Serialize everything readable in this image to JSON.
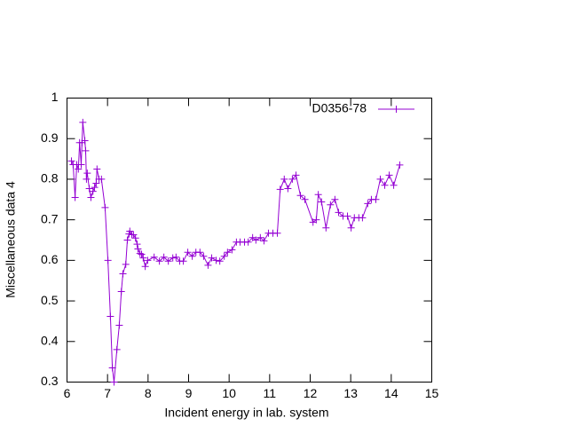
{
  "chart_data": {
    "type": "line",
    "xlabel": "Incident energy in lab. system",
    "ylabel": "Miscellaneous data 4",
    "xlim": [
      6,
      15
    ],
    "xticks": [
      6,
      7,
      8,
      9,
      10,
      11,
      12,
      13,
      14,
      15
    ],
    "ylim": [
      0.3,
      1
    ],
    "yticks": [
      0.3,
      0.4,
      0.5,
      0.6,
      0.7,
      0.8,
      0.9,
      1
    ],
    "legend": "top-right",
    "series": [
      {
        "name": "D0356-78",
        "color": "#9400d3",
        "x": [
          6.11,
          6.15,
          6.2,
          6.24,
          6.28,
          6.31,
          6.35,
          6.37,
          6.39,
          6.44,
          6.46,
          6.48,
          6.5,
          6.55,
          6.59,
          6.64,
          6.68,
          6.72,
          6.74,
          6.79,
          6.85,
          6.94,
          7.01,
          7.07,
          7.12,
          7.16,
          7.23,
          7.29,
          7.34,
          7.38,
          7.45,
          7.49,
          7.53,
          7.55,
          7.6,
          7.64,
          7.69,
          7.73,
          7.75,
          7.8,
          7.84,
          7.88,
          7.93,
          7.99,
          8.15,
          8.28,
          8.39,
          8.5,
          8.61,
          8.69,
          8.78,
          8.87,
          8.98,
          9.09,
          9.18,
          9.28,
          9.37,
          9.48,
          9.57,
          9.68,
          9.77,
          9.88,
          9.96,
          10.07,
          10.18,
          10.27,
          10.38,
          10.47,
          10.58,
          10.66,
          10.77,
          10.86,
          10.97,
          11.08,
          11.19,
          11.26,
          11.36,
          11.45,
          11.56,
          11.65,
          11.76,
          11.87,
          12.07,
          12.15,
          12.2,
          12.28,
          12.39,
          12.5,
          12.61,
          12.7,
          12.81,
          12.92,
          13.01,
          13.09,
          13.2,
          13.29,
          13.42,
          13.51,
          13.62,
          13.73,
          13.84,
          13.95,
          14.06,
          14.21
        ],
        "values": [
          0.845,
          0.836,
          0.755,
          0.836,
          0.825,
          0.89,
          0.836,
          0.89,
          0.94,
          0.895,
          0.87,
          0.8,
          0.815,
          0.777,
          0.755,
          0.77,
          0.78,
          0.79,
          0.825,
          0.8,
          0.8,
          0.73,
          0.6,
          0.462,
          0.335,
          0.3,
          0.38,
          0.44,
          0.523,
          0.567,
          0.59,
          0.65,
          0.665,
          0.672,
          0.663,
          0.663,
          0.655,
          0.64,
          0.628,
          0.617,
          0.615,
          0.606,
          0.585,
          0.6,
          0.608,
          0.598,
          0.608,
          0.598,
          0.606,
          0.608,
          0.598,
          0.598,
          0.62,
          0.61,
          0.62,
          0.62,
          0.61,
          0.588,
          0.606,
          0.6,
          0.598,
          0.61,
          0.62,
          0.626,
          0.645,
          0.645,
          0.645,
          0.645,
          0.656,
          0.65,
          0.656,
          0.648,
          0.667,
          0.667,
          0.667,
          0.775,
          0.8,
          0.777,
          0.8,
          0.81,
          0.76,
          0.75,
          0.694,
          0.7,
          0.762,
          0.744,
          0.68,
          0.737,
          0.75,
          0.718,
          0.709,
          0.709,
          0.68,
          0.705,
          0.705,
          0.705,
          0.74,
          0.75,
          0.75,
          0.8,
          0.785,
          0.81,
          0.785,
          0.835
        ]
      }
    ]
  }
}
